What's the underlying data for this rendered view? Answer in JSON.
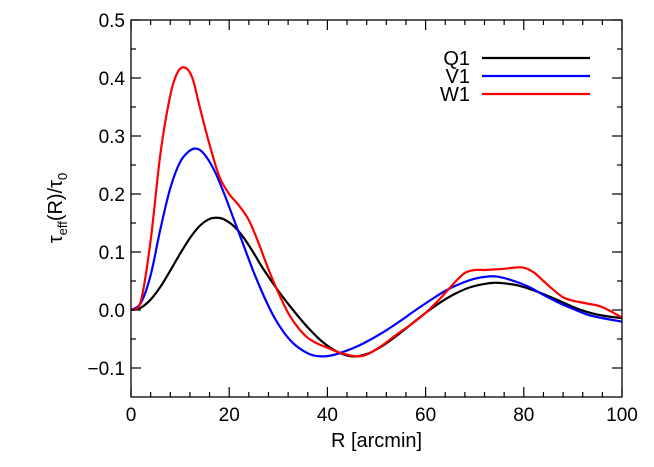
{
  "chart_data": {
    "type": "line",
    "title": "",
    "xlabel": "R [arcmin]",
    "ylabel_parts": {
      "main": "τ",
      "sub": "eff",
      "mid": "(R)/τ",
      "sub2": "0"
    },
    "xlim": [
      0,
      100
    ],
    "ylim": [
      -0.15,
      0.5
    ],
    "xticks": [
      0,
      20,
      40,
      60,
      80,
      100
    ],
    "xtick_labels": [
      "0",
      "20",
      "40",
      "60",
      "80",
      "100"
    ],
    "yticks": [
      -0.1,
      0.0,
      0.1,
      0.2,
      0.3,
      0.4,
      0.5
    ],
    "ytick_labels": [
      "−0.1",
      "0.0",
      "0.1",
      "0.2",
      "0.3",
      "0.4",
      "0.5"
    ],
    "grid": false,
    "legend": "top-right",
    "series": [
      {
        "name": "Q1",
        "color": "#000000",
        "x": [
          0,
          2,
          4,
          6,
          8,
          10,
          12,
          14,
          16,
          17.5,
          19,
          21,
          23,
          25,
          27,
          30,
          33,
          36,
          39,
          42,
          45,
          48,
          51,
          54,
          57,
          60,
          63,
          66,
          69,
          72,
          74,
          76,
          79,
          82,
          85,
          88,
          91,
          94,
          97,
          100
        ],
        "y": [
          0.0,
          0.004,
          0.018,
          0.04,
          0.068,
          0.097,
          0.124,
          0.145,
          0.157,
          0.159,
          0.156,
          0.144,
          0.124,
          0.098,
          0.07,
          0.033,
          0.0,
          -0.03,
          -0.055,
          -0.072,
          -0.08,
          -0.076,
          -0.063,
          -0.045,
          -0.025,
          -0.005,
          0.013,
          0.028,
          0.039,
          0.045,
          0.047,
          0.046,
          0.042,
          0.034,
          0.024,
          0.013,
          0.002,
          -0.006,
          -0.011,
          -0.014
        ]
      },
      {
        "name": "V1",
        "color": "#0000ff",
        "x": [
          0,
          2,
          4,
          6,
          8,
          10,
          12,
          13.5,
          15,
          17,
          19,
          21,
          23,
          25,
          27,
          29,
          31,
          33,
          35,
          37,
          39,
          41,
          43,
          46,
          49,
          52,
          55,
          58,
          61,
          64,
          67,
          70,
          73,
          75,
          78,
          81,
          84,
          87,
          90,
          93,
          96,
          100
        ],
        "y": [
          0.0,
          0.012,
          0.06,
          0.14,
          0.21,
          0.255,
          0.275,
          0.278,
          0.268,
          0.24,
          0.2,
          0.155,
          0.11,
          0.065,
          0.025,
          -0.01,
          -0.037,
          -0.057,
          -0.07,
          -0.078,
          -0.08,
          -0.078,
          -0.073,
          -0.063,
          -0.05,
          -0.035,
          -0.018,
          0.0,
          0.017,
          0.033,
          0.045,
          0.054,
          0.058,
          0.057,
          0.05,
          0.04,
          0.026,
          0.013,
          0.002,
          -0.008,
          -0.014,
          -0.02
        ]
      },
      {
        "name": "W1",
        "color": "#ff0000",
        "x": [
          0,
          2,
          4,
          6,
          8,
          9.5,
          11,
          12.5,
          14,
          16,
          18,
          20,
          22,
          24,
          26,
          28,
          30,
          32,
          34,
          36,
          38,
          40,
          42,
          44,
          46,
          48,
          51,
          54,
          57,
          60,
          63,
          66,
          68,
          70,
          72,
          74,
          76,
          78,
          80,
          82,
          84,
          86,
          88,
          90,
          93,
          96,
          100
        ],
        "y": [
          0.0,
          0.015,
          0.12,
          0.27,
          0.37,
          0.41,
          0.418,
          0.4,
          0.35,
          0.285,
          0.23,
          0.2,
          0.18,
          0.155,
          0.115,
          0.07,
          0.03,
          -0.005,
          -0.03,
          -0.048,
          -0.058,
          -0.065,
          -0.072,
          -0.077,
          -0.08,
          -0.077,
          -0.062,
          -0.043,
          -0.025,
          -0.005,
          0.02,
          0.048,
          0.064,
          0.069,
          0.069,
          0.07,
          0.071,
          0.073,
          0.073,
          0.065,
          0.05,
          0.035,
          0.022,
          0.016,
          0.011,
          0.005,
          -0.013
        ]
      }
    ]
  }
}
